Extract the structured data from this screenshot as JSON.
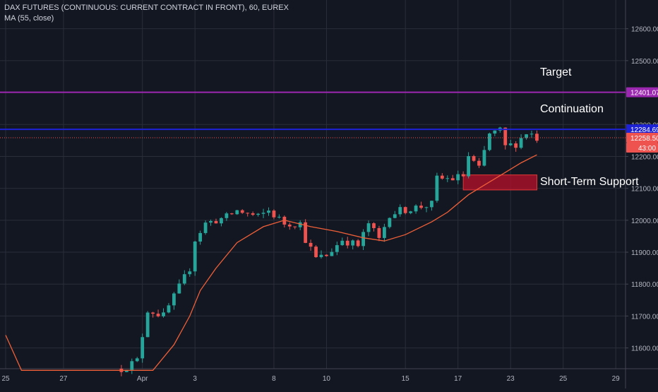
{
  "legend": {
    "symbol_line": "DAX FUTURES (CONTINUOUS: CURRENT CONTRACT IN FRONT), 60, EUREX",
    "indicator_line": "MA (55, close)"
  },
  "chart_data": {
    "type": "candlestick",
    "ylim": [
      11535,
      12690
    ],
    "y_ticks": [
      11600,
      11700,
      11800,
      11900,
      12000,
      12100,
      12200,
      12300,
      12400,
      12500,
      12600
    ],
    "y_tick_labels": [
      "11600.00",
      "11700.00",
      "11800.00",
      "11900.00",
      "12000.00",
      "12100.00",
      "12200.00",
      "12300.00",
      "12400.00",
      "12500.00",
      "12600.00"
    ],
    "x_ticks": [
      {
        "label": "25",
        "index": 0
      },
      {
        "label": "27",
        "index": 11
      },
      {
        "label": "Apr",
        "index": 26
      },
      {
        "label": "3",
        "index": 36
      },
      {
        "label": "8",
        "index": 51
      },
      {
        "label": "10",
        "index": 61
      },
      {
        "label": "15",
        "index": 76
      },
      {
        "label": "17",
        "index": 86
      },
      {
        "label": "23",
        "index": 96
      },
      {
        "label": "25",
        "index": 106
      },
      {
        "label": "29",
        "index": 116
      }
    ],
    "bar_count": 124,
    "candles_start_index": 22,
    "candles_end_index": 101,
    "price_path": [
      [
        22,
        11535
      ],
      [
        25,
        11560
      ],
      [
        26,
        11640
      ],
      [
        27,
        11720
      ],
      [
        30,
        11700
      ],
      [
        33,
        11790
      ],
      [
        35,
        11850
      ],
      [
        36,
        11940
      ],
      [
        38,
        11990
      ],
      [
        42,
        12010
      ],
      [
        44,
        12030
      ],
      [
        48,
        12010
      ],
      [
        50,
        12030
      ],
      [
        53,
        11990
      ],
      [
        56,
        11990
      ],
      [
        57,
        11940
      ],
      [
        59,
        11880
      ],
      [
        61,
        11890
      ],
      [
        64,
        11940
      ],
      [
        67,
        11920
      ],
      [
        69,
        11990
      ],
      [
        71,
        11940
      ],
      [
        73,
        12020
      ],
      [
        75,
        12030
      ],
      [
        78,
        12040
      ],
      [
        81,
        12050
      ],
      [
        82,
        12130
      ],
      [
        85,
        12130
      ],
      [
        87,
        12140
      ],
      [
        88,
        12200
      ],
      [
        90,
        12160
      ],
      [
        92,
        12270
      ],
      [
        94,
        12280
      ],
      [
        95,
        12230
      ],
      [
        97,
        12240
      ],
      [
        99,
        12275
      ],
      [
        100,
        12270
      ],
      [
        101,
        12258
      ]
    ],
    "ma_series": {
      "name": "MA (55, close)",
      "color": "#ef5f38",
      "points": [
        [
          0,
          11640
        ],
        [
          3,
          11530
        ],
        [
          28,
          11530
        ],
        [
          32,
          11610
        ],
        [
          35,
          11700
        ],
        [
          37,
          11780
        ],
        [
          40,
          11850
        ],
        [
          44,
          11930
        ],
        [
          49,
          11980
        ],
        [
          53,
          12000
        ],
        [
          58,
          11980
        ],
        [
          63,
          11965
        ],
        [
          68,
          11945
        ],
        [
          72,
          11935
        ],
        [
          76,
          11955
        ],
        [
          81,
          11995
        ],
        [
          84,
          12025
        ],
        [
          88,
          12080
        ],
        [
          92,
          12120
        ],
        [
          95,
          12150
        ],
        [
          98,
          12180
        ],
        [
          101,
          12205
        ]
      ]
    },
    "horizontal_lines": [
      {
        "name": "target-line",
        "value": 12401.07,
        "label": "12401.07",
        "color": "#9c27b0",
        "style": "solid"
      },
      {
        "name": "continuation-line",
        "value": 12284.69,
        "label": "12284.69",
        "color": "#1e22d6",
        "style": "solid"
      },
      {
        "name": "last-price-line",
        "value": 12258.5,
        "label": "12258.50",
        "color": "#ef5350",
        "style": "dotted"
      }
    ],
    "hidden_tick_label": "12300.00",
    "countdown_label": "43:00",
    "support_zone": {
      "from_index": 87,
      "to_index": 101,
      "low": 12095,
      "high": 12142,
      "color": "#b2102a"
    },
    "annotations": [
      {
        "text": "Target",
        "value": 12460
      },
      {
        "text": "Continuation",
        "value": 12345
      },
      {
        "text": "Short-Term Support",
        "value": 12118
      }
    ],
    "colors": {
      "background": "#131722",
      "grid": "#2a2e39",
      "up": "#26a69a",
      "down": "#ef5350",
      "axis_text": "#b2b5be"
    }
  }
}
